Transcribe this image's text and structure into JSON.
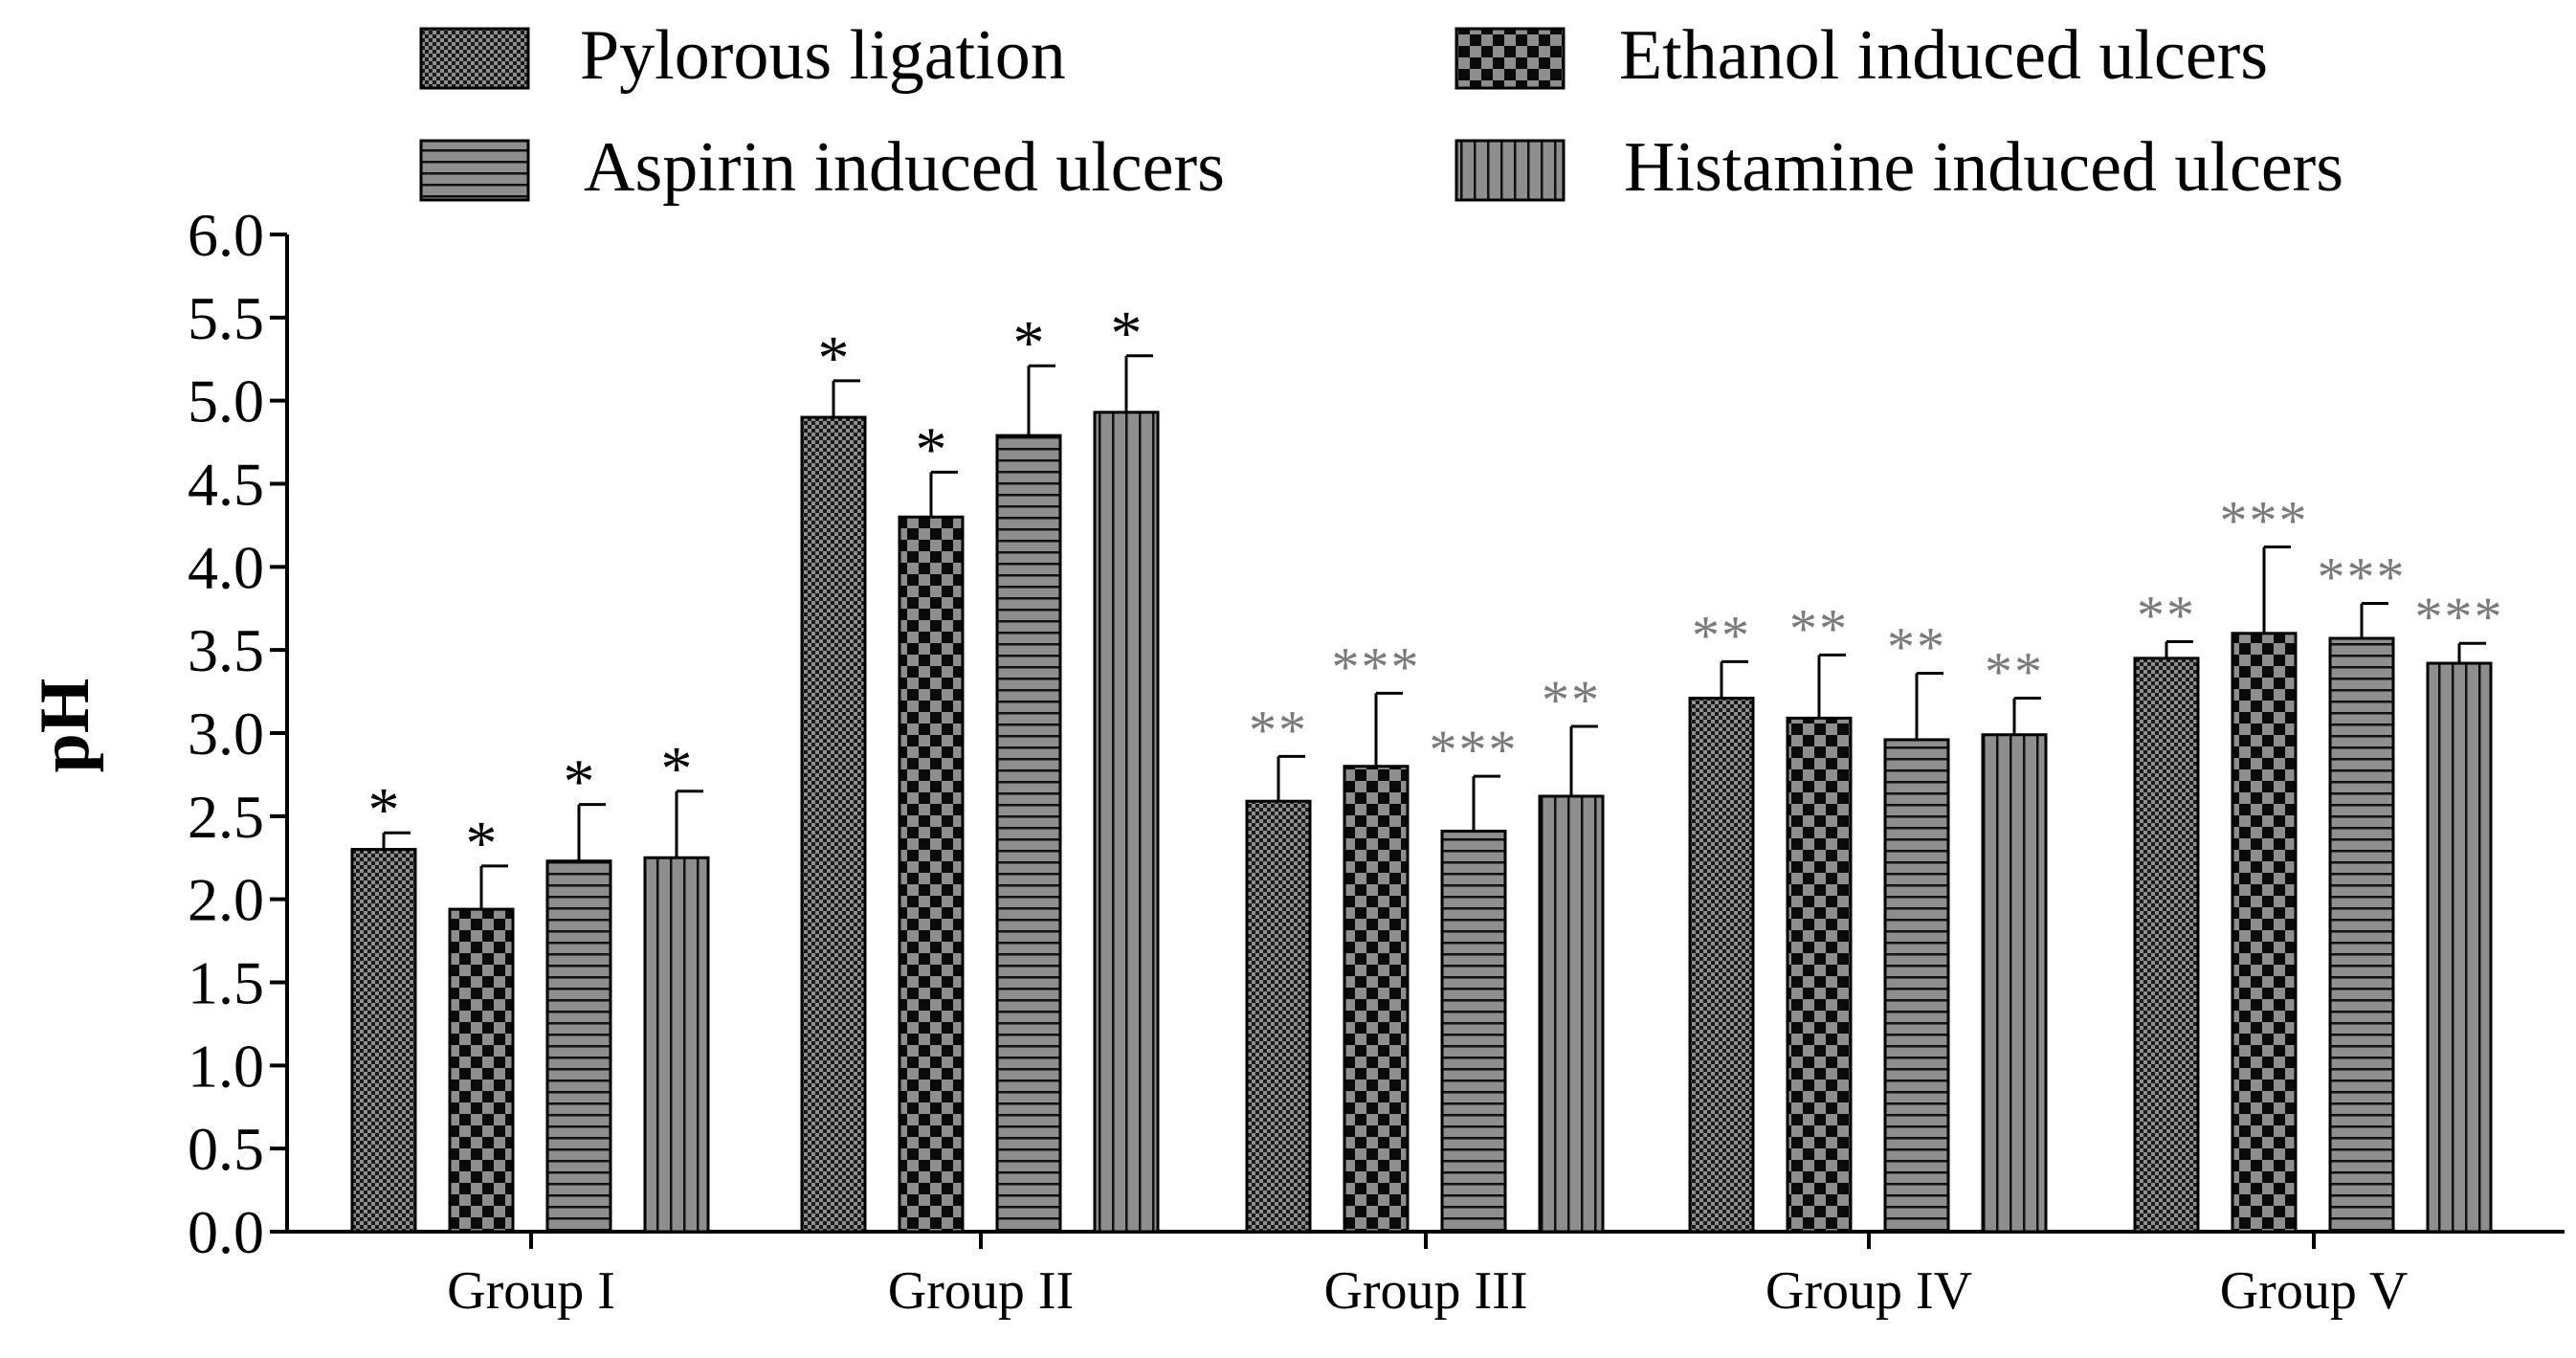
{
  "chart_data": {
    "type": "bar",
    "ylabel": "pH",
    "xlabel": "",
    "ylim": [
      0,
      6
    ],
    "y_ticks": [
      "0.0",
      "0.5",
      "1.0",
      "1.5",
      "2.0",
      "2.5",
      "3.0",
      "3.5",
      "4.0",
      "4.5",
      "5.0",
      "5.5",
      "6.0"
    ],
    "categories": [
      "Group I",
      "Group II",
      "Group III",
      "Group IV",
      "Group V"
    ],
    "legend_position": "top",
    "grid": false,
    "series": [
      {
        "name": "Pylorous ligation",
        "pattern": "fine-dots",
        "values": [
          2.3,
          4.9,
          2.59,
          3.21,
          3.45
        ],
        "errors": [
          0.1,
          0.22,
          0.27,
          0.22,
          0.1
        ],
        "significance": [
          "*",
          "*",
          "**",
          "**",
          "**"
        ]
      },
      {
        "name": "Ethanol induced ulcers",
        "pattern": "checkerboard",
        "values": [
          1.94,
          4.3,
          2.8,
          3.09,
          3.6
        ],
        "errors": [
          0.26,
          0.27,
          0.44,
          0.38,
          0.52
        ],
        "significance": [
          "*",
          "*",
          "***",
          "**",
          "***"
        ]
      },
      {
        "name": "Aspirin induced ulcers",
        "pattern": "horizontal-lines",
        "values": [
          2.23,
          4.79,
          2.41,
          2.96,
          3.57
        ],
        "errors": [
          0.34,
          0.42,
          0.33,
          0.4,
          0.21
        ],
        "significance": [
          "*",
          "*",
          "***",
          "**",
          "***"
        ]
      },
      {
        "name": "Histamine induced ulcers",
        "pattern": "vertical-lines",
        "values": [
          2.25,
          4.93,
          2.62,
          2.99,
          3.42
        ],
        "errors": [
          0.4,
          0.34,
          0.42,
          0.22,
          0.12
        ],
        "significance": [
          "*",
          "*",
          "**",
          "**",
          "***"
        ]
      }
    ]
  },
  "colors": {
    "bar_dark": "#000000",
    "bar_light": "#909090",
    "axis": "#000000",
    "star_heavy": "#000000",
    "star_light": "#7a7a7a"
  }
}
